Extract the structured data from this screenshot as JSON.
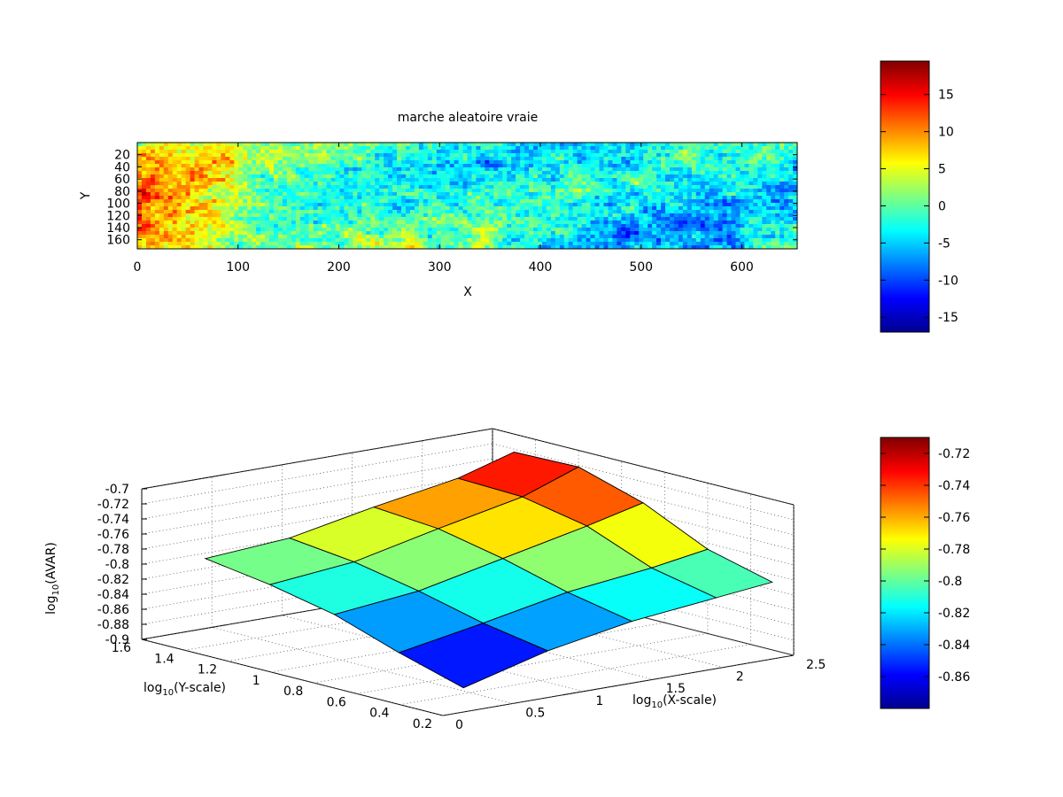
{
  "chart_data": [
    {
      "type": "heatmap",
      "title": "marche aleatoire vraie",
      "xlabel": "X",
      "ylabel": "Y",
      "xlim": [
        0,
        655
      ],
      "ylim": [
        0,
        175
      ],
      "y_reversed": true,
      "x_ticks": [
        "0",
        "100",
        "200",
        "300",
        "400",
        "500",
        "600"
      ],
      "y_ticks": [
        "20",
        "40",
        "60",
        "80",
        "100",
        "120",
        "140",
        "160"
      ],
      "colorbar": {
        "colormap": "jet",
        "range": [
          -17,
          19.5
        ],
        "ticks": [
          "-15",
          "-10",
          "-5",
          "0",
          "5",
          "10",
          "15"
        ]
      }
    },
    {
      "type": "surface",
      "title": "",
      "xlabel": "log10(X-scale)",
      "ylabel": "log10(Y-scale)",
      "zlabel": "log10(AVAR)",
      "xlim": [
        0,
        2.5
      ],
      "ylim": [
        0.2,
        1.6
      ],
      "zlim": [
        -0.9,
        -0.7
      ],
      "x_ticks": [
        "0",
        "0.5",
        "1",
        "1.5",
        "2",
        "2.5"
      ],
      "y_ticks": [
        "0.2",
        "0.4",
        "0.6",
        "0.8",
        "1",
        "1.2",
        "1.4",
        "1.6"
      ],
      "z_ticks": [
        "-0.7",
        "-0.72",
        "-0.74",
        "-0.76",
        "-0.78",
        "-0.8",
        "-0.82",
        "-0.84",
        "-0.86",
        "-0.88",
        "-0.9"
      ],
      "x_grid": [
        0.3,
        0.9,
        1.5,
        2.1,
        2.5
      ],
      "y_grid": [
        0.3,
        0.6,
        0.9,
        1.2,
        1.5
      ],
      "z_values": [
        [
          -0.88,
          -0.855,
          -0.826,
          -0.808,
          -0.795
        ],
        [
          -0.85,
          -0.835,
          -0.814,
          -0.797,
          -0.787
        ],
        [
          -0.83,
          -0.813,
          -0.79,
          -0.772,
          -0.765
        ],
        [
          -0.818,
          -0.8,
          -0.766,
          -0.749,
          -0.746
        ],
        [
          -0.81,
          -0.788,
          -0.748,
          -0.722,
          -0.724
        ]
      ],
      "colorbar": {
        "colormap": "jet",
        "range": [
          -0.88,
          -0.71
        ],
        "ticks": [
          "-0.72",
          "-0.74",
          "-0.76",
          "-0.78",
          "-0.8",
          "-0.82",
          "-0.84",
          "-0.86"
        ]
      }
    }
  ]
}
